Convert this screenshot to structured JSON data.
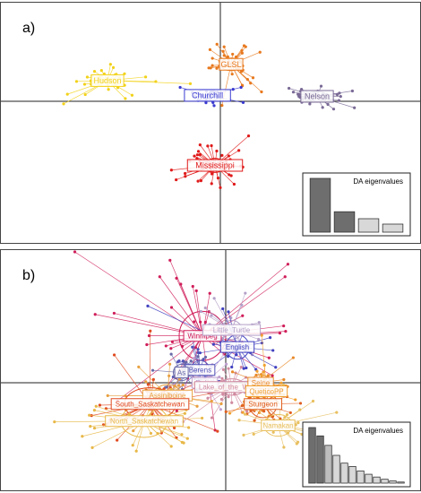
{
  "chart_data": [
    {
      "type": "scatter",
      "panel_label": "a)",
      "inset_title": "DA eigenvalues",
      "eigenvalues": [
        1.0,
        0.38,
        0.25,
        0.15
      ],
      "eigen_colors": [
        "#6e6e6e",
        "#6e6e6e",
        "#d8d8d8",
        "#d8d8d8"
      ],
      "groups": [
        {
          "name": "Hudson",
          "color": "#f2d21a",
          "center": [
            -1.05,
            0.42
          ],
          "spread": [
            0.22,
            0.18
          ],
          "n": 36,
          "ellipse": [
            0.13,
            0.07
          ]
        },
        {
          "name": "GLSL",
          "color": "#e8791e",
          "center": [
            0.1,
            0.75
          ],
          "spread": [
            0.18,
            0.28
          ],
          "n": 36,
          "ellipse": [
            0.1,
            0.08
          ]
        },
        {
          "name": "Churchill",
          "color": "#3b3bd1",
          "center": [
            -0.12,
            0.12
          ],
          "spread": [
            0.15,
            0.12
          ],
          "n": 30,
          "ellipse": [
            0.12,
            0.07
          ]
        },
        {
          "name": "Nelson",
          "color": "#7a6a96",
          "center": [
            0.9,
            0.1
          ],
          "spread": [
            0.2,
            0.14
          ],
          "n": 36,
          "ellipse": [
            0.1,
            0.06
          ]
        },
        {
          "name": "Mississippi",
          "color": "#e01a1a",
          "center": [
            -0.05,
            -1.3
          ],
          "spread": [
            0.2,
            0.28
          ],
          "n": 44,
          "ellipse": [
            0.09,
            0.09
          ]
        }
      ]
    },
    {
      "type": "scatter",
      "panel_label": "b)",
      "inset_title": "DA eigenvalues",
      "eigenvalues": [
        1.0,
        0.85,
        0.68,
        0.5,
        0.36,
        0.3,
        0.22,
        0.16,
        0.11,
        0.07,
        0.04,
        0.02
      ],
      "eigen_colors": [
        "#6e6e6e",
        "#6e6e6e",
        "#bdbdbd",
        "#d8d8d8",
        "#d8d8d8",
        "#d8d8d8",
        "#d8d8d8",
        "#d8d8d8",
        "#d8d8d8",
        "#d8d8d8",
        "#d8d8d8",
        "#d8d8d8"
      ],
      "groups": [
        {
          "name": "Winnipeg",
          "color": "#d01e5a",
          "center": [
            -0.2,
            0.55
          ],
          "spread": [
            0.45,
            0.4
          ],
          "n": 40,
          "ellipse": [
            0.2,
            0.18
          ]
        },
        {
          "name": "Little_Turtle",
          "color": "#b4a0c8",
          "center": [
            0.05,
            0.62
          ],
          "spread": [
            0.2,
            0.2
          ],
          "n": 18,
          "ellipse": [
            0.09,
            0.07
          ]
        },
        {
          "name": "English",
          "color": "#4040c0",
          "center": [
            0.1,
            0.42
          ],
          "spread": [
            0.2,
            0.22
          ],
          "n": 26,
          "ellipse": [
            0.1,
            0.09
          ]
        },
        {
          "name": "Berens",
          "color": "#5050b8",
          "center": [
            -0.22,
            0.15
          ],
          "spread": [
            0.15,
            0.18
          ],
          "n": 22,
          "ellipse": [
            0.08,
            0.07
          ]
        },
        {
          "name": "As",
          "color": "#6868a8",
          "center": [
            -0.38,
            0.12
          ],
          "spread": [
            0.14,
            0.18
          ],
          "n": 18,
          "ellipse": [
            0.07,
            0.06
          ]
        },
        {
          "name": "Rainy",
          "color": "#c0a0d0",
          "center": [
            -0.18,
            0.0
          ],
          "spread": [
            0.2,
            0.2
          ],
          "n": 20,
          "ellipse": [
            0.08,
            0.07
          ]
        },
        {
          "name": "Lake_of_the_Woods",
          "color": "#d08aa0",
          "center": [
            0.05,
            -0.05
          ],
          "spread": [
            0.25,
            0.2
          ],
          "n": 22,
          "ellipse": [
            0.12,
            0.06
          ]
        },
        {
          "name": "Seine",
          "color": "#e8892a",
          "center": [
            0.3,
            0.0
          ],
          "spread": [
            0.18,
            0.18
          ],
          "n": 22,
          "ellipse": [
            0.08,
            0.06
          ]
        },
        {
          "name": "QueticoPP",
          "color": "#f0a030",
          "center": [
            0.35,
            -0.1
          ],
          "spread": [
            0.2,
            0.18
          ],
          "n": 22,
          "ellipse": [
            0.09,
            0.07
          ]
        },
        {
          "name": "Sturgeon",
          "color": "#e06020",
          "center": [
            0.32,
            -0.25
          ],
          "spread": [
            0.2,
            0.2
          ],
          "n": 24,
          "ellipse": [
            0.12,
            0.1
          ]
        },
        {
          "name": "Assiniboine",
          "color": "#e8a040",
          "center": [
            -0.5,
            -0.15
          ],
          "spread": [
            0.25,
            0.2
          ],
          "n": 24,
          "ellipse": [
            0.12,
            0.08
          ]
        },
        {
          "name": "South_Saskatchewan",
          "color": "#e04a20",
          "center": [
            -0.65,
            -0.25
          ],
          "spread": [
            0.35,
            0.3
          ],
          "n": 34,
          "ellipse": [
            0.22,
            0.12
          ]
        },
        {
          "name": "North_Saskatchewan",
          "color": "#e8b848",
          "center": [
            -0.7,
            -0.45
          ],
          "spread": [
            0.35,
            0.25
          ],
          "n": 30,
          "ellipse": [
            0.2,
            0.12
          ]
        },
        {
          "name": "Namakan",
          "color": "#e8c060",
          "center": [
            0.45,
            -0.5
          ],
          "spread": [
            0.25,
            0.22
          ],
          "n": 26,
          "ellipse": [
            0.12,
            0.08
          ]
        }
      ]
    }
  ]
}
